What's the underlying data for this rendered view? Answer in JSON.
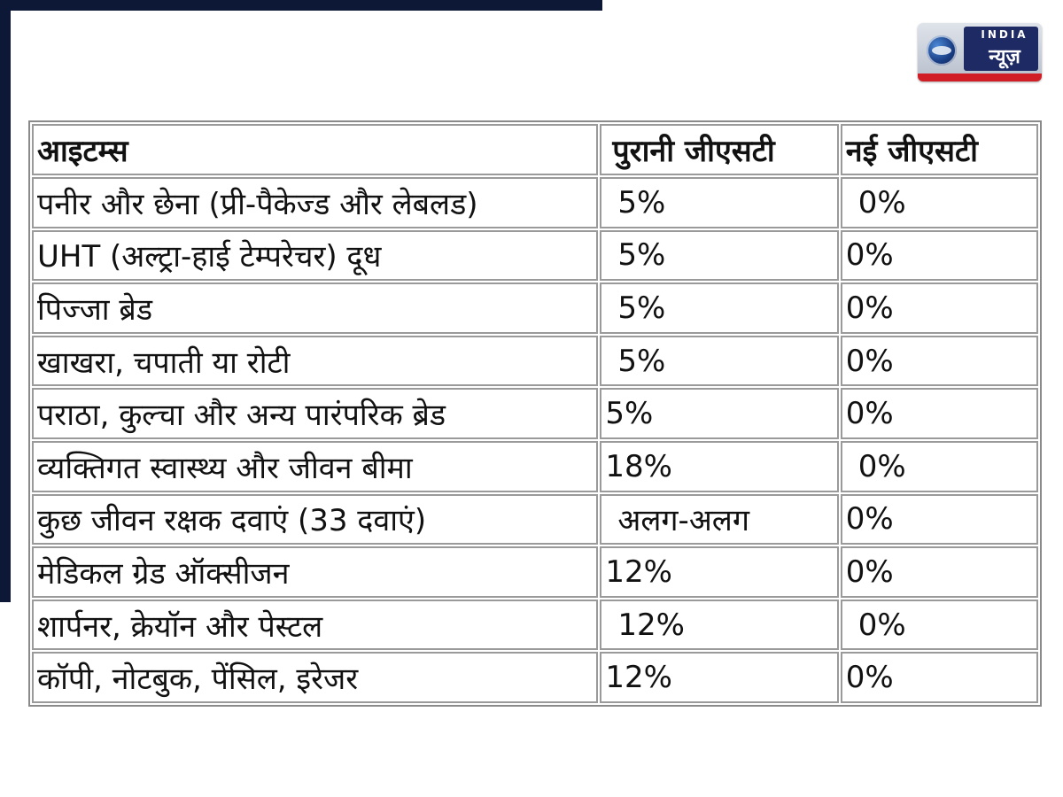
{
  "logo": {
    "top_text": "INDIA",
    "brand_text": "न्यूज़"
  },
  "table": {
    "headers": [
      "आइटम्स",
      "पुरानी जीएसटी",
      "नई जीएसटी"
    ],
    "rows": [
      [
        "पनीर और छेना (प्री-पैकेज्ड और लेबलड)",
        "5%",
        "0%"
      ],
      [
        "UHT (अल्ट्रा-हाई टेम्परेचर) दूध",
        "5%",
        "0%"
      ],
      [
        "पिज्जा ब्रेड",
        "5%",
        "0%"
      ],
      [
        "खाखरा, चपाती या रोटी",
        "5%",
        "0%"
      ],
      [
        "पराठा, कुल्चा और अन्य पारंपरिक ब्रेड",
        "5%",
        "0%"
      ],
      [
        "व्यक्तिगत स्वास्थ्य और जीवन बीमा",
        "18%",
        "0%"
      ],
      [
        "कुछ जीवन रक्षक दवाएं (33 दवाएं)",
        "अलग-अलग",
        "0%"
      ],
      [
        "मेडिकल ग्रेड ऑक्सीजन",
        "12%",
        "0%"
      ],
      [
        "शार्पनर, क्रेयॉन और पेस्टल",
        "12%",
        "0%"
      ],
      [
        "कॉपी, नोटबुक, पेंसिल, इरेजर",
        "12%",
        "0%"
      ]
    ]
  },
  "colors": {
    "frame": "#0c1836",
    "logo_panel": "#1d2a63",
    "logo_red": "#d11e26"
  }
}
